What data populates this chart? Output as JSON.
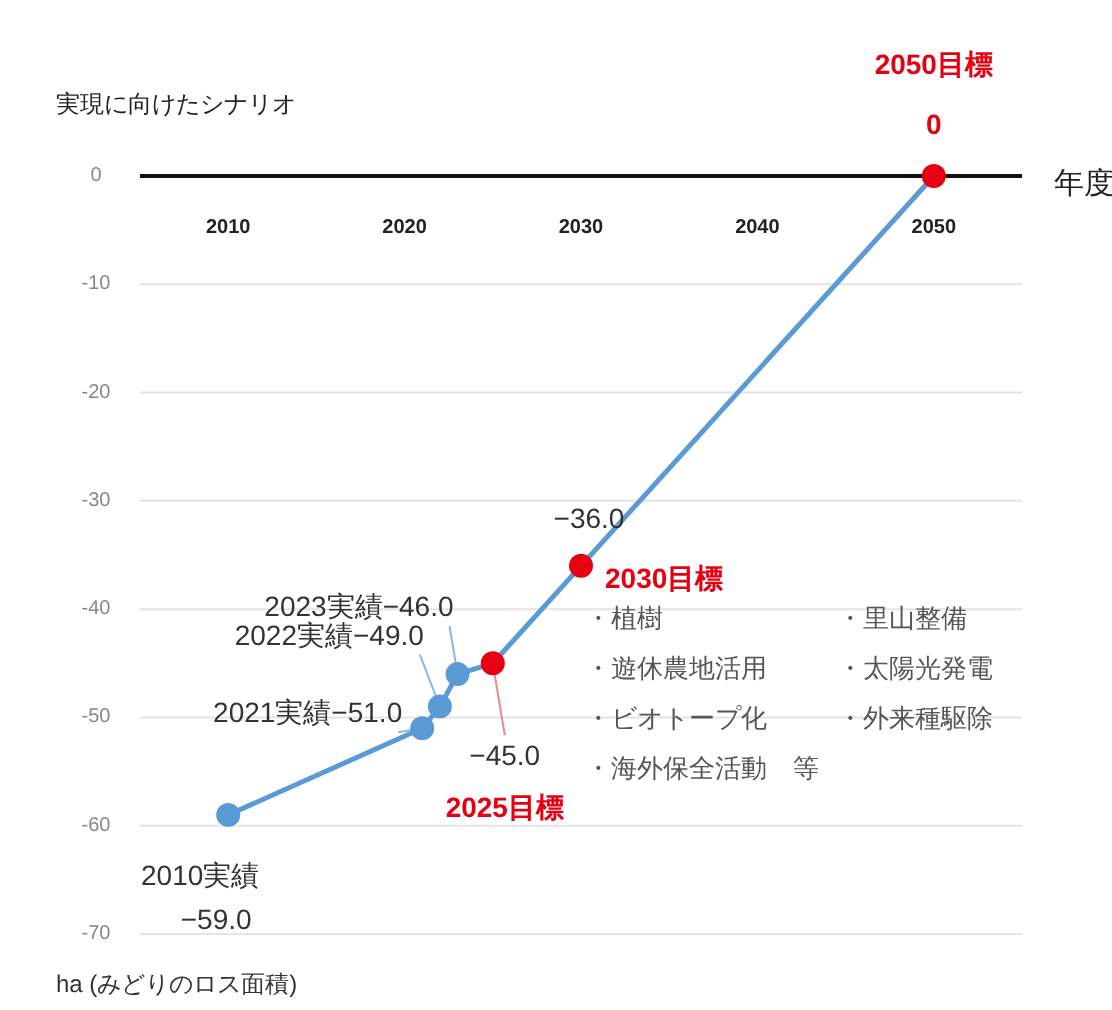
{
  "chart_data": {
    "type": "line",
    "title": "実現に向けたシナリオ",
    "xlabel": "年度",
    "ylabel": "ha (みどりのロス面積)",
    "xlim": [
      2005,
      2055
    ],
    "xticks": [
      2010,
      2020,
      2030,
      2040,
      2050
    ],
    "ylim": [
      -70,
      0
    ],
    "yticks": [
      -70,
      -60,
      -50,
      -40,
      -30,
      -20,
      -10,
      0
    ],
    "grid": "y",
    "marker": "circle",
    "line_style": "solid",
    "series": [
      {
        "color": "#5b9bd5",
        "x": [
          2010,
          2021,
          2022,
          2023,
          2025,
          2030,
          2050
        ],
        "values": [
          -59,
          -51,
          -49,
          -46,
          -45,
          -36,
          0
        ],
        "colors": [
          "#5b9bd5",
          "#5b9bd5",
          "#5b9bd5",
          "#5b9bd5",
          "#e60012",
          "#e60012",
          "#e60012"
        ]
      }
    ],
    "annotations": [
      "2050目標",
      {
        "text": "0",
        "x": 2050,
        "y": 0
      },
      {
        "text": "−36.0",
        "x": 2030,
        "y": -36
      },
      {
        "text": "2030目標",
        "x": 2030,
        "y": -36
      },
      {
        "text": "2023実績−46.0",
        "x": 2023,
        "y": -46
      },
      {
        "text": "2022実績−49.0",
        "x": 2022,
        "y": -49
      },
      {
        "text": "2021実績−51.0",
        "x": 2021,
        "y": -51
      },
      {
        "text": "−45.0",
        "x": 2025,
        "y": -45
      },
      "2025目標",
      {
        "text": "2010実績",
        "x": 2010,
        "y": -59
      },
      "−59.0",
      "・植樹",
      "・里山整備",
      "・遊休農地活用",
      "・太陽光発電",
      "・ビオトープ化",
      "・外来種駆除",
      "・海外保全活動　等"
    ]
  }
}
